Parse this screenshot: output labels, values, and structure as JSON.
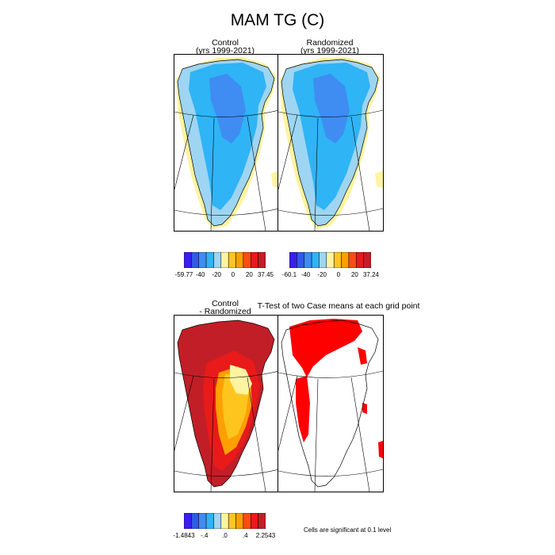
{
  "title": "MAM TG (C)",
  "panels": [
    {
      "title_line1": "Control",
      "title_line2": "(yrs 1999-2021)"
    },
    {
      "title_line1": "Randomized",
      "title_line2": "(yrs 1999-2021)"
    },
    {
      "title_line1": "Control",
      "title_line2": "- Randomized"
    },
    {
      "title_line1": "T-Test of two Case means at each grid point",
      "title_line2": ""
    }
  ],
  "colorbars": [
    {
      "colors": [
        "#3b1ef0",
        "#3359e8",
        "#3f8cf2",
        "#2fb4f5",
        "#9ed5f2",
        "#fff4a0",
        "#ffc51f",
        "#ff9f00",
        "#ff4b14",
        "#e81a1a",
        "#c21e27"
      ],
      "ticks": [
        "-59.77",
        "-40",
        "-20",
        "0",
        "20",
        "37.45"
      ]
    },
    {
      "colors": [
        "#3b1ef0",
        "#3359e8",
        "#3f8cf2",
        "#2fb4f5",
        "#9ed5f2",
        "#fff4a0",
        "#ffc51f",
        "#ff9f00",
        "#ff4b14",
        "#e81a1a",
        "#c21e27"
      ],
      "ticks": [
        "-60.1",
        "-40",
        "-20",
        "0",
        "20",
        "37.24"
      ]
    },
    {
      "colors": [
        "#3b1ef0",
        "#3359e8",
        "#3f8cf2",
        "#2fb4f5",
        "#9ed5f2",
        "#fff4a0",
        "#ffc51f",
        "#ff9f00",
        "#ff4b14",
        "#e81a1a",
        "#c21e27"
      ],
      "ticks": [
        "-1.4843",
        "-.4",
        ".0",
        ".4",
        "2.2543"
      ]
    }
  ],
  "significance_note": "Cells are significant at 0.1 level",
  "chart_data": [
    {
      "type": "heatmap",
      "title": "Control (yrs 1999-2021)",
      "scale_min": -59.77,
      "scale_max": 37.45,
      "zones": [
        {
          "level": "interior",
          "color": "#3f8cf2"
        },
        {
          "level": "mid",
          "color": "#2fb4f5"
        },
        {
          "level": "edge",
          "color": "#9ed5f2"
        },
        {
          "level": "coast",
          "color": "#fff4a0"
        }
      ]
    },
    {
      "type": "heatmap",
      "title": "Randomized (yrs 1999-2021)",
      "scale_min": -60.1,
      "scale_max": 37.24,
      "zones": [
        {
          "level": "interior",
          "color": "#3f8cf2"
        },
        {
          "level": "mid",
          "color": "#2fb4f5"
        },
        {
          "level": "edge",
          "color": "#9ed5f2"
        },
        {
          "level": "coast",
          "color": "#fff4a0"
        }
      ]
    },
    {
      "type": "heatmap",
      "title": "Control - Randomized",
      "scale_min": -1.4843,
      "scale_max": 2.2543,
      "zones": [
        {
          "level": "west",
          "color": "#c21e27"
        },
        {
          "level": "mid",
          "color": "#e81a1a"
        },
        {
          "level": "inner",
          "color": "#ff9f00"
        },
        {
          "level": "core",
          "color": "#ffc51f"
        },
        {
          "level": "center",
          "color": "#fff4a0"
        }
      ]
    },
    {
      "type": "heatmap",
      "title": "T-Test of two Case means at each grid point",
      "significant_color": "#ff0000"
    }
  ]
}
